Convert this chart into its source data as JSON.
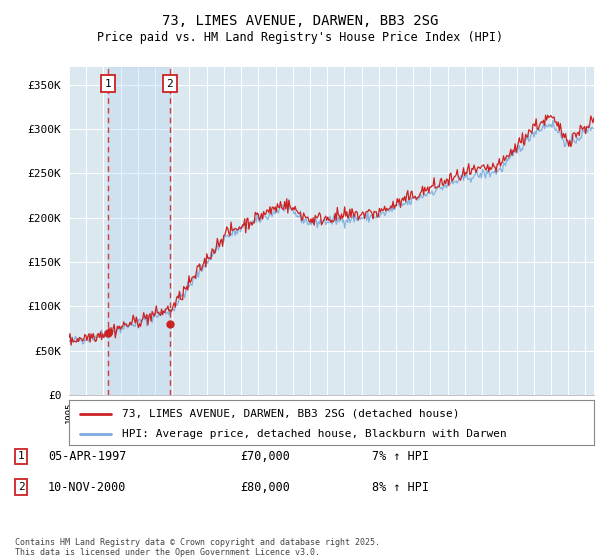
{
  "title": "73, LIMES AVENUE, DARWEN, BB3 2SG",
  "subtitle": "Price paid vs. HM Land Registry's House Price Index (HPI)",
  "legend_line1": "73, LIMES AVENUE, DARWEN, BB3 2SG (detached house)",
  "legend_line2": "HPI: Average price, detached house, Blackburn with Darwen",
  "footer": "Contains HM Land Registry data © Crown copyright and database right 2025.\nThis data is licensed under the Open Government Licence v3.0.",
  "annotation1": {
    "label": "1",
    "date": "05-APR-1997",
    "price": "£70,000",
    "hpi": "7% ↑ HPI"
  },
  "annotation2": {
    "label": "2",
    "date": "10-NOV-2000",
    "price": "£80,000",
    "hpi": "8% ↑ HPI"
  },
  "ylim": [
    0,
    370000
  ],
  "yticks": [
    0,
    50000,
    100000,
    150000,
    200000,
    250000,
    300000,
    350000
  ],
  "hpi_color": "#7aaddc",
  "price_color": "#cc2222",
  "plot_bg": "#dce8f0",
  "annotation_box_color": "#cc2222",
  "vline1_x": 1997.27,
  "vline2_x": 2000.86,
  "marker1_y": 70000,
  "marker2_y": 80000,
  "xlim_start": 1995.0,
  "xlim_end": 2025.5
}
